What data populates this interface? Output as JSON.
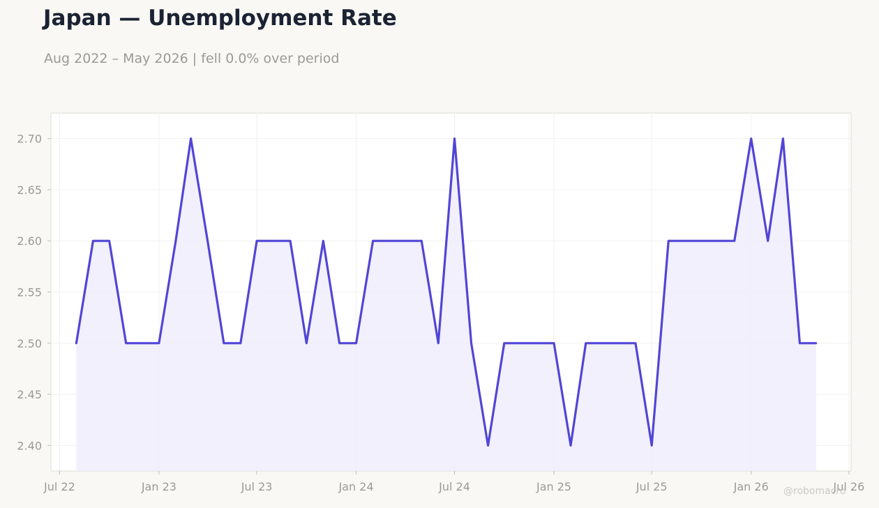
{
  "title": "Japan — Unemployment Rate",
  "subtitle": "Aug 2022 – May 2026 | fell 0.0% over period",
  "watermark": "@robomacro",
  "colors": {
    "line": "#5145d6",
    "fill": "#efedfc",
    "text": "#1b2333",
    "muted": "#9a9a95"
  },
  "chart_data": {
    "type": "area",
    "title": "Japan — Unemployment Rate",
    "subtitle": "Aug 2022 – May 2026 | fell 0.0% over period",
    "xlabel": "",
    "ylabel": "",
    "x_ticks": [
      "Jul 22",
      "Jan 23",
      "Jul 23",
      "Jan 24",
      "Jul 24",
      "Jan 25",
      "Jul 25",
      "Jan 26",
      "Jul 26"
    ],
    "y_ticks": [
      "2.40",
      "2.45",
      "2.50",
      "2.55",
      "2.60",
      "2.65",
      "2.70"
    ],
    "ylim": [
      2.375,
      2.725
    ],
    "xlim": [
      "2022-06-15",
      "2026-07-05"
    ],
    "grid": true,
    "legend": "none",
    "series": [
      {
        "x": [
          "2022-08",
          "2022-09",
          "2022-10",
          "2022-11",
          "2022-12",
          "2023-01",
          "2023-02",
          "2023-03",
          "2023-04",
          "2023-05",
          "2023-06",
          "2023-07",
          "2023-08",
          "2023-09",
          "2023-10",
          "2023-11",
          "2023-12",
          "2024-01",
          "2024-02",
          "2024-03",
          "2024-04",
          "2024-05",
          "2024-06",
          "2024-07",
          "2024-08",
          "2024-09",
          "2024-10",
          "2024-11",
          "2024-12",
          "2025-01",
          "2025-02",
          "2025-03",
          "2025-04",
          "2025-05",
          "2025-06",
          "2025-07",
          "2025-08",
          "2025-09",
          "2025-10",
          "2025-11",
          "2025-12",
          "2026-01",
          "2026-02",
          "2026-03",
          "2026-04",
          "2026-05"
        ],
        "values": [
          2.5,
          2.6,
          2.6,
          2.5,
          2.5,
          2.5,
          2.6,
          2.7,
          2.6,
          2.5,
          2.5,
          2.6,
          2.6,
          2.6,
          2.5,
          2.6,
          2.5,
          2.5,
          2.6,
          2.6,
          2.6,
          2.6,
          2.5,
          2.7,
          2.5,
          2.4,
          2.5,
          2.5,
          2.5,
          2.5,
          2.4,
          2.5,
          2.5,
          2.5,
          2.5,
          2.4,
          2.6,
          2.6,
          2.6,
          2.6,
          2.6,
          2.7,
          2.6,
          2.7,
          2.5,
          2.5
        ]
      }
    ]
  }
}
